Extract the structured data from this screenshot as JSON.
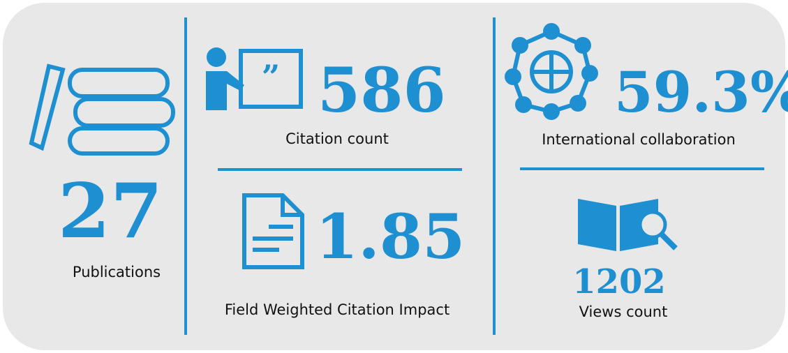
{
  "metrics": [
    {
      "value": "27",
      "label": "Publications"
    },
    {
      "value": "586",
      "label": "Citation count"
    },
    {
      "value": "1.85",
      "label": "Field Weighted Citation Impact"
    },
    {
      "value": "59.3%",
      "label": "International collaboration"
    },
    {
      "value": "1202",
      "label": "Views count"
    }
  ]
}
